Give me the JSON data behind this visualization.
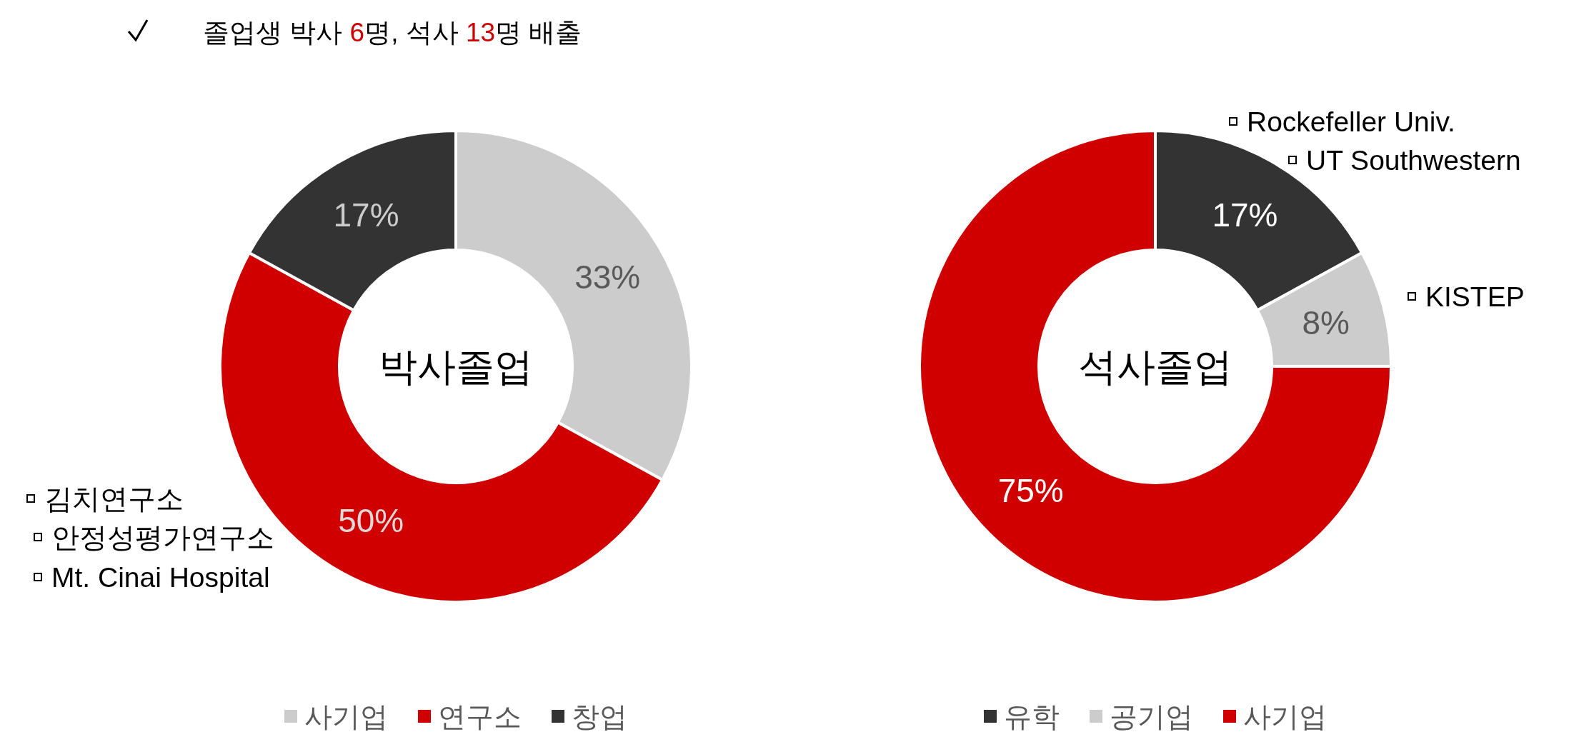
{
  "chart_data": [
    {
      "type": "donut",
      "title": "졸업생 박사 6명, 석사 13명 배출",
      "subtitle": "박사졸업",
      "categories": [
        "사기업",
        "연구소",
        "창업"
      ],
      "values": [
        33,
        50,
        17
      ],
      "colors": [
        "#cccccc",
        "#d00000",
        "#333333"
      ],
      "value_labels": [
        "33%",
        "50%",
        "17%"
      ],
      "legend": "bottom",
      "annotations": [
        "김치연구소",
        "안정성평가연구소",
        "Mt. Cinai Hospital"
      ]
    },
    {
      "type": "donut",
      "subtitle": "석사졸업",
      "categories": [
        "유학",
        "공기업",
        "사기업"
      ],
      "values": [
        17,
        8,
        75
      ],
      "colors": [
        "#333333",
        "#cccccc",
        "#d00000"
      ],
      "value_labels": [
        "17%",
        "8%",
        "75%"
      ],
      "legend": "bottom",
      "annotations": [
        "Rockefeller Univ.",
        "UT Southwestern",
        "KISTEP"
      ]
    }
  ]
}
